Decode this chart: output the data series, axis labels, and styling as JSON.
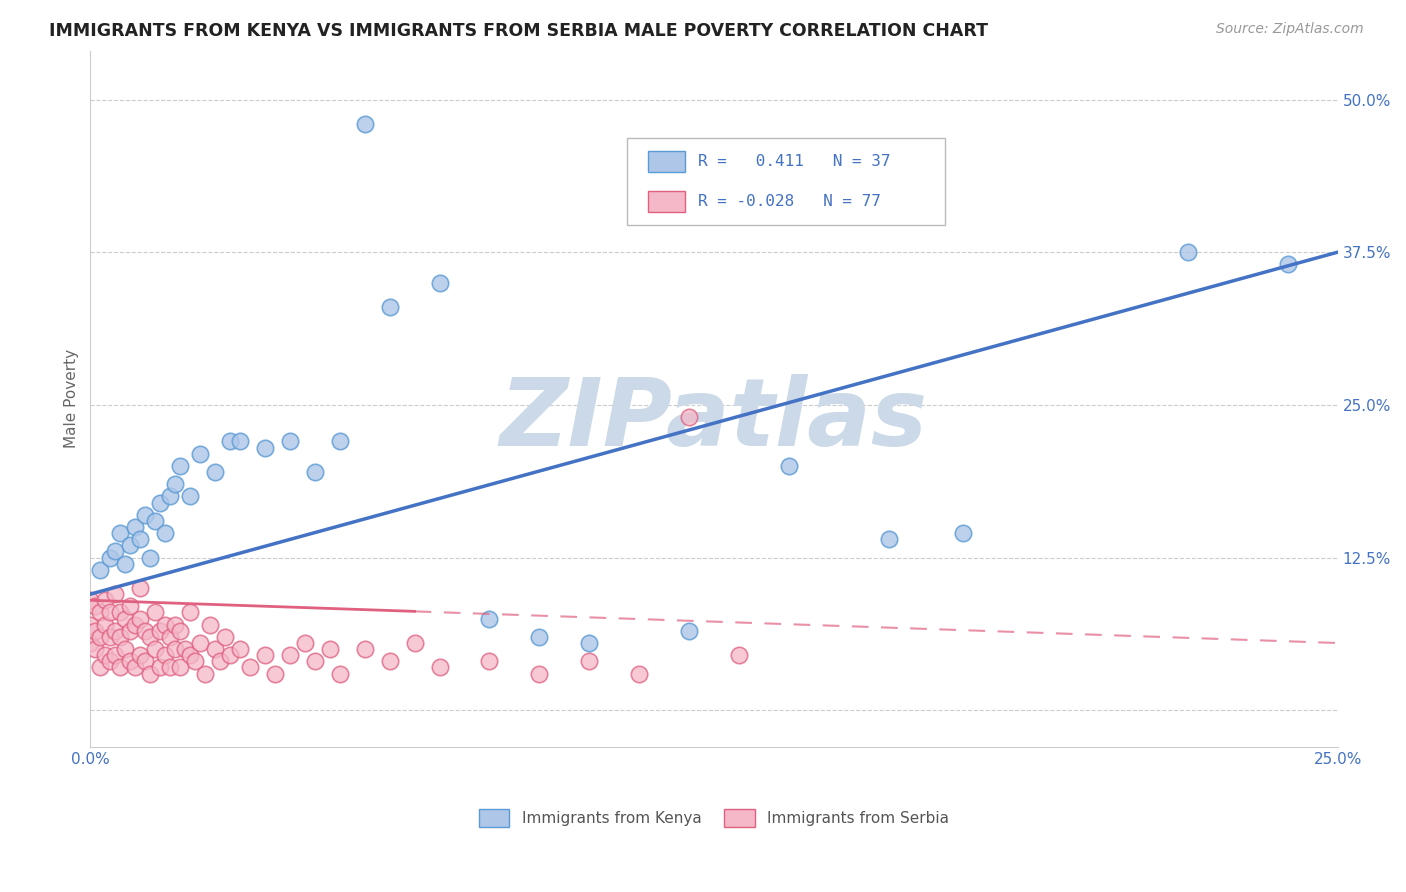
{
  "title": "IMMIGRANTS FROM KENYA VS IMMIGRANTS FROM SERBIA MALE POVERTY CORRELATION CHART",
  "source": "Source: ZipAtlas.com",
  "ylabel": "Male Poverty",
  "x_min": 0.0,
  "x_max": 0.25,
  "y_min": -0.03,
  "y_max": 0.54,
  "x_ticks": [
    0.0,
    0.05,
    0.1,
    0.15,
    0.2,
    0.25
  ],
  "y_ticks": [
    0.0,
    0.125,
    0.25,
    0.375,
    0.5
  ],
  "y_tick_labels": [
    "",
    "12.5%",
    "25.0%",
    "37.5%",
    "50.0%"
  ],
  "kenya_color": "#aec6e8",
  "kenya_edge_color": "#5b9bd5",
  "serbia_color": "#f4b8c8",
  "serbia_edge_color": "#e06080",
  "kenya_R": 0.411,
  "kenya_N": 37,
  "serbia_R": -0.028,
  "serbia_N": 77,
  "kenya_line_color": "#4472c4",
  "serbia_line_color": "#e06080",
  "watermark": "ZIPatlas",
  "watermark_color": "#ccd9e8",
  "kenya_x": [
    0.002,
    0.004,
    0.005,
    0.006,
    0.007,
    0.008,
    0.009,
    0.01,
    0.011,
    0.012,
    0.013,
    0.014,
    0.015,
    0.016,
    0.017,
    0.018,
    0.02,
    0.022,
    0.025,
    0.028,
    0.03,
    0.035,
    0.04,
    0.045,
    0.05,
    0.055,
    0.06,
    0.07,
    0.08,
    0.09,
    0.1,
    0.12,
    0.14,
    0.16,
    0.175,
    0.22,
    0.24
  ],
  "kenya_y": [
    0.115,
    0.125,
    0.13,
    0.145,
    0.12,
    0.135,
    0.15,
    0.14,
    0.16,
    0.125,
    0.155,
    0.17,
    0.145,
    0.175,
    0.185,
    0.2,
    0.175,
    0.21,
    0.195,
    0.22,
    0.22,
    0.215,
    0.22,
    0.195,
    0.22,
    0.48,
    0.33,
    0.35,
    0.075,
    0.06,
    0.055,
    0.065,
    0.2,
    0.14,
    0.145,
    0.375,
    0.365
  ],
  "serbia_x": [
    0.0,
    0.0,
    0.0,
    0.001,
    0.001,
    0.001,
    0.002,
    0.002,
    0.002,
    0.003,
    0.003,
    0.003,
    0.004,
    0.004,
    0.004,
    0.005,
    0.005,
    0.005,
    0.006,
    0.006,
    0.006,
    0.007,
    0.007,
    0.008,
    0.008,
    0.008,
    0.009,
    0.009,
    0.01,
    0.01,
    0.01,
    0.011,
    0.011,
    0.012,
    0.012,
    0.013,
    0.013,
    0.014,
    0.014,
    0.015,
    0.015,
    0.016,
    0.016,
    0.017,
    0.017,
    0.018,
    0.018,
    0.019,
    0.02,
    0.02,
    0.021,
    0.022,
    0.023,
    0.024,
    0.025,
    0.026,
    0.027,
    0.028,
    0.03,
    0.032,
    0.035,
    0.037,
    0.04,
    0.043,
    0.045,
    0.048,
    0.05,
    0.055,
    0.06,
    0.065,
    0.07,
    0.08,
    0.09,
    0.1,
    0.11,
    0.12,
    0.13
  ],
  "serbia_y": [
    0.055,
    0.07,
    0.09,
    0.05,
    0.065,
    0.085,
    0.035,
    0.06,
    0.08,
    0.045,
    0.07,
    0.09,
    0.04,
    0.06,
    0.08,
    0.045,
    0.065,
    0.095,
    0.035,
    0.06,
    0.08,
    0.05,
    0.075,
    0.04,
    0.065,
    0.085,
    0.035,
    0.07,
    0.045,
    0.075,
    0.1,
    0.04,
    0.065,
    0.03,
    0.06,
    0.08,
    0.05,
    0.035,
    0.065,
    0.07,
    0.045,
    0.035,
    0.06,
    0.05,
    0.07,
    0.035,
    0.065,
    0.05,
    0.08,
    0.045,
    0.04,
    0.055,
    0.03,
    0.07,
    0.05,
    0.04,
    0.06,
    0.045,
    0.05,
    0.035,
    0.045,
    0.03,
    0.045,
    0.055,
    0.04,
    0.05,
    0.03,
    0.05,
    0.04,
    0.055,
    0.035,
    0.04,
    0.03,
    0.04,
    0.03,
    0.24,
    0.045
  ]
}
